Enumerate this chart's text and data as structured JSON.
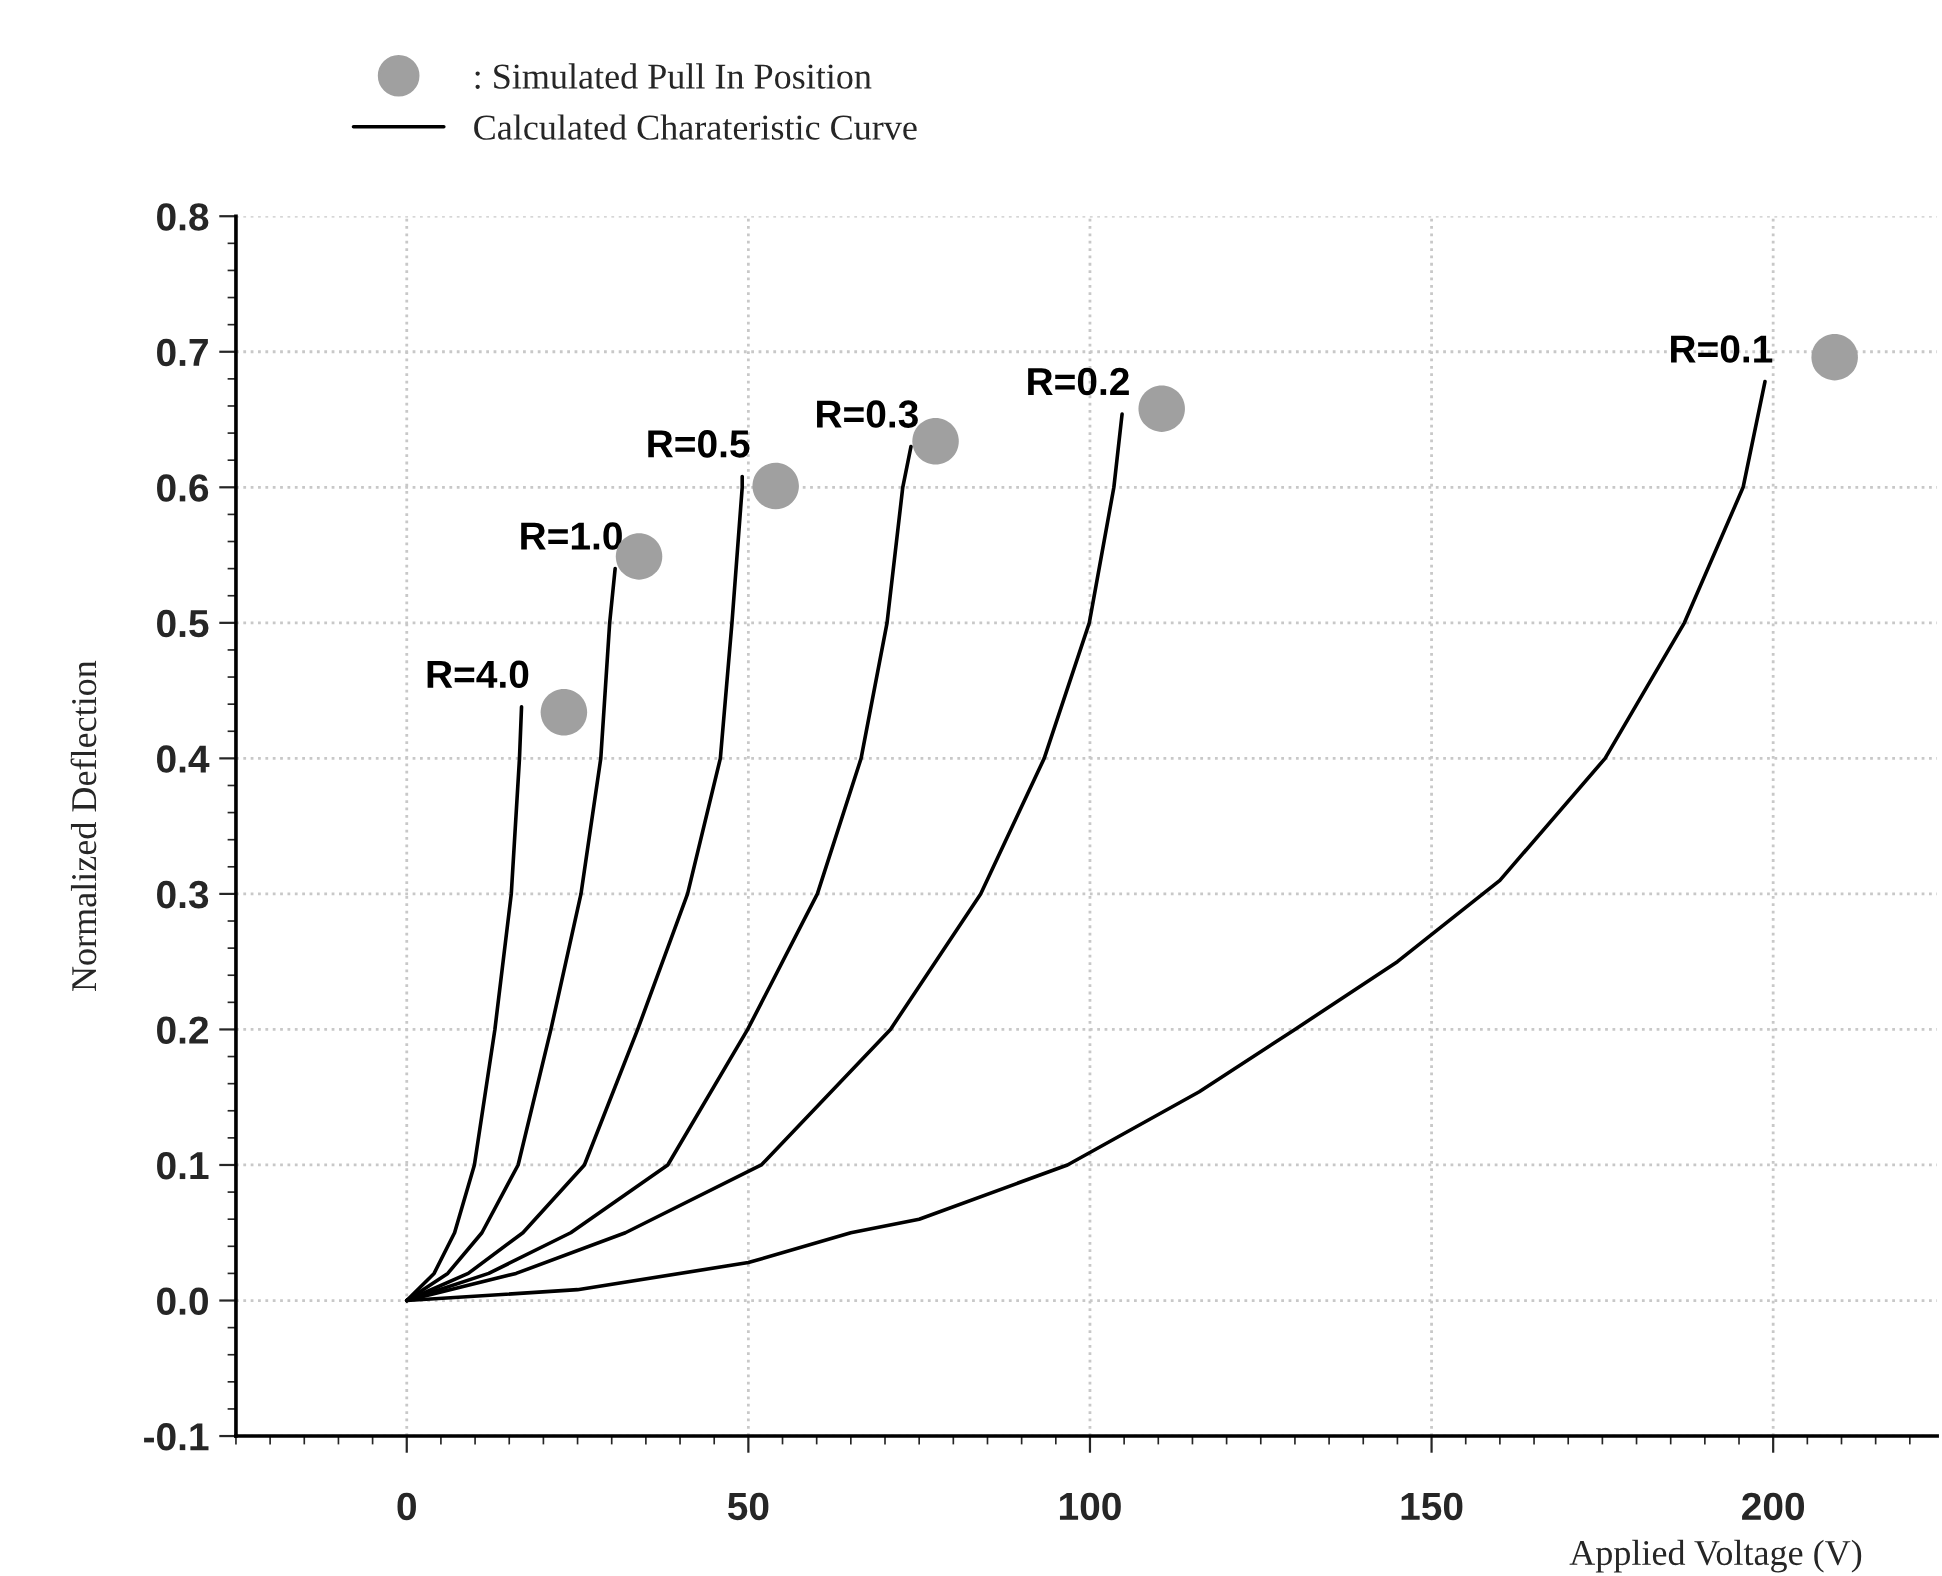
{
  "chart_data": {
    "type": "line",
    "xlabel": "Applied Voltage (V)",
    "ylabel": "Normalized Deflection",
    "annotations": [
      "Calculated Charateristic Curve"
    ],
    "series": [
      {
        "name": "R=4.0",
        "color": "#000000",
        "x": [
          0,
          4,
          7,
          9.9,
          12.9,
          15.3,
          16.5,
          16.8
        ],
        "values": [
          0,
          0.02,
          0.05,
          0.1,
          0.2,
          0.3,
          0.4,
          0.438
        ]
      },
      {
        "name": "R=1.0",
        "color": "#000000",
        "x": [
          0,
          6,
          11,
          16.3,
          21.1,
          25.5,
          28.4,
          29.7,
          30.5
        ],
        "values": [
          0,
          0.02,
          0.05,
          0.1,
          0.2,
          0.3,
          0.4,
          0.5,
          0.54
        ]
      },
      {
        "name": "R=0.5",
        "color": "#000000",
        "x": [
          0,
          9,
          17,
          26,
          33.8,
          41.1,
          45.9,
          47.6,
          49.1,
          49.1
        ],
        "values": [
          0,
          0.02,
          0.05,
          0.1,
          0.2,
          0.3,
          0.4,
          0.5,
          0.6,
          0.608
        ]
      },
      {
        "name": "R=0.3",
        "color": "#000000",
        "x": [
          0,
          12,
          24,
          38.2,
          49.9,
          60.1,
          66.5,
          70.3,
          72.6,
          73.8
        ],
        "values": [
          0,
          0.02,
          0.05,
          0.1,
          0.2,
          0.3,
          0.4,
          0.5,
          0.6,
          0.63
        ]
      },
      {
        "name": "R=0.2",
        "color": "#000000",
        "x": [
          0,
          16,
          32,
          51.9,
          70.8,
          84,
          93.3,
          99.9,
          103.5,
          104.7
        ],
        "values": [
          0,
          0.02,
          0.05,
          0.1,
          0.2,
          0.3,
          0.4,
          0.5,
          0.6,
          0.654
        ]
      },
      {
        "name": "R=0.1",
        "color": "#000000",
        "x": [
          0,
          25,
          50,
          65,
          75,
          96.7,
          116,
          130,
          145,
          160,
          175.4,
          187,
          195.6,
          198.8
        ],
        "values": [
          0,
          0.008,
          0.028,
          0.05,
          0.06,
          0.1,
          0.154,
          0.2,
          0.25,
          0.31,
          0.4,
          0.5,
          0.6,
          0.678
        ]
      },
      {
        "name": ": Simulated Pull In Position",
        "type": "scatter",
        "color": "#a0a0a0",
        "marker": "circle",
        "x": [
          23,
          34,
          54,
          77.4,
          110.5,
          209
        ],
        "values": [
          0.434,
          0.549,
          0.601,
          0.634,
          0.658,
          0.696
        ]
      }
    ],
    "xlim": [
      -25,
      224
    ],
    "ylim": [
      -0.1,
      0.8
    ],
    "xticks": [
      0,
      50,
      100,
      150,
      200
    ],
    "yticks": [
      {
        "value": -0.1,
        "label": "-0.1"
      },
      {
        "value": 0,
        "label": "0.0"
      },
      {
        "value": 0.1,
        "label": "0.1"
      },
      {
        "value": 0.2,
        "label": "0.2"
      },
      {
        "value": 0.3,
        "label": "0.3"
      },
      {
        "value": 0.4,
        "label": "0.4"
      },
      {
        "value": 0.5,
        "label": "0.5"
      },
      {
        "value": 0.6,
        "label": "0.6"
      },
      {
        "value": 0.7,
        "label": "0.7"
      },
      {
        "value": 0.8,
        "label": "0.8"
      }
    ],
    "grid": true,
    "legend": "top left",
    "line_style": "solid"
  }
}
